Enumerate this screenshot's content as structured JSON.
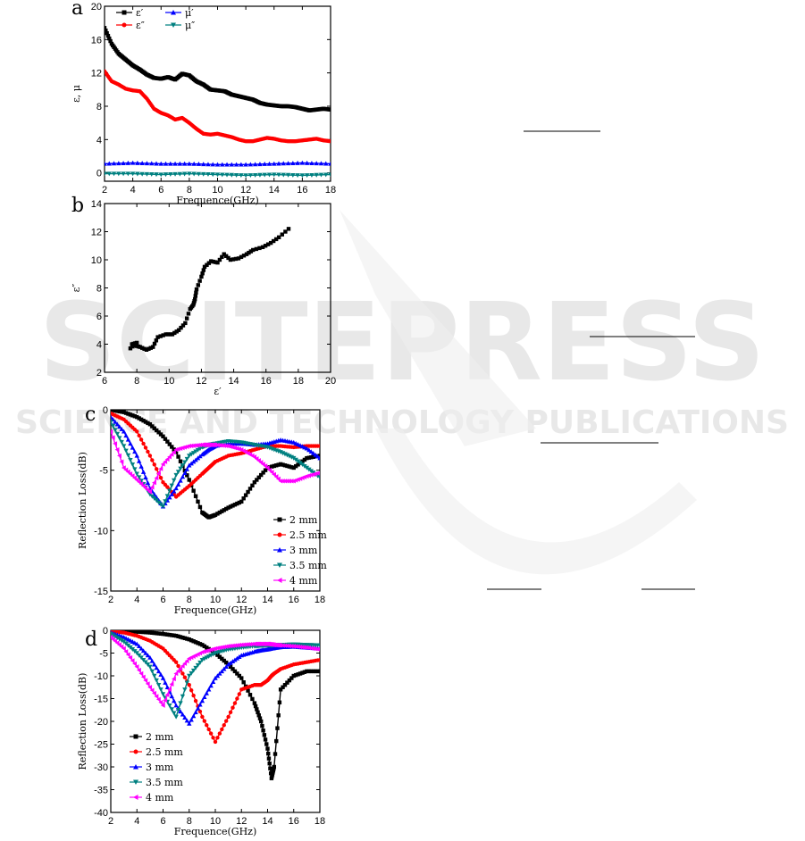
{
  "watermark": {
    "main": "SCITEPRESS",
    "sub": "SCIENCE AND TECHNOLOGY PUBLICATIONS"
  },
  "chart_data": [
    {
      "panel": "a",
      "type": "line",
      "xlabel": "Frequence(GHz)",
      "ylabel": "ε, μ",
      "xlim": [
        2,
        18
      ],
      "ylim": [
        -1,
        20
      ],
      "xticks": [
        2,
        4,
        6,
        8,
        10,
        12,
        14,
        16,
        18
      ],
      "yticks": [
        0,
        4,
        8,
        12,
        16,
        20
      ],
      "legend_position": "top-left",
      "series": [
        {
          "name": "ε′",
          "color": "#000000",
          "marker": "square",
          "x": [
            2,
            2.5,
            3,
            3.5,
            4,
            4.5,
            5,
            5.5,
            6,
            6.5,
            7,
            7.5,
            8,
            8.5,
            9,
            9.5,
            10,
            10.5,
            11,
            11.5,
            12,
            12.5,
            13,
            13.5,
            14,
            14.5,
            15,
            15.5,
            16,
            16.5,
            17,
            17.5,
            18
          ],
          "y": [
            17.4,
            15.5,
            14.3,
            13.6,
            12.9,
            12.4,
            11.8,
            11.4,
            11.3,
            11.5,
            11.2,
            11.9,
            11.7,
            11.0,
            10.6,
            10.0,
            9.9,
            9.8,
            9.4,
            9.2,
            9.0,
            8.8,
            8.4,
            8.2,
            8.1,
            8.0,
            8.0,
            7.9,
            7.7,
            7.5,
            7.6,
            7.7,
            7.6
          ]
        },
        {
          "name": "ε″",
          "color": "#ff0000",
          "marker": "circle",
          "x": [
            2,
            2.5,
            3,
            3.5,
            4,
            4.5,
            5,
            5.5,
            6,
            6.5,
            7,
            7.5,
            8,
            8.5,
            9,
            9.5,
            10,
            10.5,
            11,
            11.5,
            12,
            12.5,
            13,
            13.5,
            14,
            14.5,
            15,
            15.5,
            16,
            16.5,
            17,
            17.5,
            18
          ],
          "y": [
            12.2,
            11.0,
            10.6,
            10.1,
            9.9,
            9.8,
            8.9,
            7.7,
            7.2,
            6.9,
            6.4,
            6.6,
            6.0,
            5.3,
            4.7,
            4.6,
            4.7,
            4.5,
            4.3,
            4.0,
            3.8,
            3.8,
            4.0,
            4.2,
            4.1,
            3.9,
            3.8,
            3.8,
            3.9,
            4.0,
            4.1,
            3.9,
            3.8
          ]
        },
        {
          "name": "μ′",
          "color": "#0000ff",
          "marker": "triangle-up",
          "x": [
            2,
            4,
            6,
            8,
            10,
            12,
            14,
            16,
            18
          ],
          "y": [
            1.1,
            1.2,
            1.1,
            1.1,
            1.0,
            1.0,
            1.1,
            1.2,
            1.1
          ]
        },
        {
          "name": "μ″",
          "color": "#008080",
          "marker": "triangle-down",
          "x": [
            2,
            4,
            6,
            8,
            10,
            12,
            14,
            16,
            18
          ],
          "y": [
            -0.1,
            -0.1,
            -0.2,
            -0.1,
            -0.2,
            -0.3,
            -0.2,
            -0.3,
            -0.2
          ]
        }
      ]
    },
    {
      "panel": "b",
      "type": "scatter",
      "xlabel": "ε′",
      "ylabel": "ε″",
      "xlim": [
        6,
        20
      ],
      "ylim": [
        2,
        14
      ],
      "xticks": [
        6,
        8,
        10,
        12,
        14,
        16,
        18,
        20
      ],
      "yticks": [
        2,
        4,
        6,
        8,
        10,
        12,
        14
      ],
      "series": [
        {
          "name": "",
          "color": "#000000",
          "marker": "square",
          "x": [
            17.4,
            16.8,
            16.3,
            15.8,
            15.2,
            14.8,
            14.3,
            13.8,
            13.4,
            13.0,
            12.6,
            12.2,
            12.0,
            11.7,
            11.6,
            11.5,
            11.3,
            11.0,
            10.6,
            10.2,
            9.8,
            9.3,
            9.0,
            8.6,
            8.2,
            7.9,
            7.7,
            8.0,
            7.6
          ],
          "y": [
            12.2,
            11.6,
            11.2,
            10.9,
            10.7,
            10.4,
            10.1,
            10.0,
            10.4,
            9.8,
            9.9,
            9.5,
            8.8,
            7.9,
            7.2,
            6.8,
            6.5,
            5.5,
            5.0,
            4.7,
            4.7,
            4.5,
            3.8,
            3.6,
            3.8,
            3.9,
            4.0,
            4.1,
            3.7
          ]
        }
      ]
    },
    {
      "panel": "c",
      "type": "line",
      "xlabel": "Frequence(GHz)",
      "ylabel": "Reflection Loss(dB)",
      "xlim": [
        2,
        18
      ],
      "ylim": [
        -15,
        0
      ],
      "xticks": [
        2,
        4,
        6,
        8,
        10,
        12,
        14,
        16,
        18
      ],
      "yticks": [
        0,
        -5,
        -10,
        -15
      ],
      "ytick_labels": [
        "0",
        "-5",
        "-10",
        "-15"
      ],
      "legend_position": "bottom-right",
      "x": [
        2,
        3,
        4,
        5,
        6,
        7,
        8,
        9,
        9.5,
        10,
        11,
        12,
        13,
        14,
        15,
        16,
        17,
        18
      ],
      "series": [
        {
          "name": "2 mm",
          "color": "#000000",
          "marker": "square",
          "values": [
            0,
            -0.2,
            -0.6,
            -1.2,
            -2.2,
            -3.5,
            -5.8,
            -8.5,
            -8.9,
            -8.7,
            -8.1,
            -7.6,
            -6.0,
            -4.8,
            -4.5,
            -4.8,
            -4.0,
            -3.8
          ]
        },
        {
          "name": "2.5 mm",
          "color": "#ff0000",
          "marker": "circle",
          "values": [
            -0.3,
            -0.8,
            -1.8,
            -3.8,
            -6.0,
            -7.2,
            -6.3,
            -5.3,
            -4.8,
            -4.3,
            -3.8,
            -3.6,
            -3.3,
            -3.0,
            -3.0,
            -3.1,
            -3.0,
            -3.0
          ]
        },
        {
          "name": "3 mm",
          "color": "#0000ff",
          "marker": "triangle-up",
          "values": [
            -0.6,
            -1.8,
            -3.8,
            -6.5,
            -8.0,
            -6.5,
            -4.6,
            -3.7,
            -3.3,
            -3.0,
            -2.8,
            -2.8,
            -2.9,
            -2.8,
            -2.5,
            -2.7,
            -3.2,
            -4.0
          ]
        },
        {
          "name": "3.5 mm",
          "color": "#008080",
          "marker": "triangle-down",
          "values": [
            -1.0,
            -3.0,
            -5.3,
            -7.0,
            -8.0,
            -5.4,
            -3.8,
            -3.1,
            -2.9,
            -2.8,
            -2.6,
            -2.7,
            -2.9,
            -3.1,
            -3.5,
            -4.0,
            -4.8,
            -5.6
          ]
        },
        {
          "name": "4 mm",
          "color": "#ff00ff",
          "marker": "triangle-left",
          "values": [
            -1.8,
            -4.8,
            -5.8,
            -6.8,
            -4.5,
            -3.3,
            -3.0,
            -2.9,
            -2.9,
            -2.9,
            -3.0,
            -3.3,
            -3.9,
            -4.8,
            -5.9,
            -5.9,
            -5.5,
            -5.2
          ]
        }
      ]
    },
    {
      "panel": "d",
      "type": "line",
      "xlabel": "Frequence(GHz)",
      "ylabel": "Reflection Loss(dB)",
      "xlim": [
        2,
        18
      ],
      "ylim": [
        -40,
        0
      ],
      "xticks": [
        2,
        4,
        6,
        8,
        10,
        12,
        14,
        16,
        18
      ],
      "yticks": [
        0,
        -5,
        -10,
        -15,
        -20,
        -25,
        -30,
        -35,
        -40
      ],
      "ytick_labels": [
        "0",
        "-5",
        "-10",
        "-15",
        "-20",
        "-25",
        "-30",
        "-35",
        "-40"
      ],
      "legend_position": "bottom-left",
      "x": [
        2,
        3,
        4,
        5,
        6,
        7,
        8,
        9,
        10,
        11,
        12,
        13,
        13.5,
        14,
        14.3,
        14.5,
        15,
        16,
        17,
        18
      ],
      "series": [
        {
          "name": "2 mm",
          "color": "#000000",
          "marker": "square",
          "values": [
            0,
            -0.1,
            -0.3,
            -0.5,
            -0.8,
            -1.2,
            -2.0,
            -3.2,
            -5.0,
            -7.5,
            -10.5,
            -16,
            -20,
            -26,
            -32.5,
            -30,
            -13,
            -10,
            -9,
            -9
          ]
        },
        {
          "name": "2.5 mm",
          "color": "#ff0000",
          "marker": "circle",
          "values": [
            -0.2,
            -0.5,
            -1.2,
            -2.3,
            -4.0,
            -7.0,
            -12,
            -19,
            -24.5,
            -19,
            -13,
            -12,
            -12,
            -11,
            -10,
            -9.5,
            -8.5,
            -7.5,
            -7,
            -6.5
          ]
        },
        {
          "name": "3 mm",
          "color": "#0000ff",
          "marker": "triangle-up",
          "values": [
            -0.5,
            -1.5,
            -3.0,
            -6.0,
            -10.5,
            -16.5,
            -20.5,
            -15.5,
            -10.5,
            -7.5,
            -5.5,
            -4.7,
            -4.4,
            -4.2,
            -4.0,
            -3.9,
            -3.7,
            -3.6,
            -3.8,
            -4.0
          ]
        },
        {
          "name": "3.5 mm",
          "color": "#008080",
          "marker": "triangle-down",
          "values": [
            -0.8,
            -2.5,
            -5.0,
            -8.0,
            -14,
            -19,
            -10,
            -6.5,
            -5.0,
            -4.2,
            -3.8,
            -3.5,
            -3.4,
            -3.3,
            -3.3,
            -3.2,
            -3.2,
            -3.1,
            -3.2,
            -3.3
          ]
        },
        {
          "name": "4 mm",
          "color": "#ff00ff",
          "marker": "triangle-left",
          "values": [
            -1.5,
            -4.0,
            -8.0,
            -12.5,
            -16.5,
            -9.5,
            -6.2,
            -4.8,
            -4.0,
            -3.5,
            -3.2,
            -3.0,
            -3.0,
            -3.0,
            -3.1,
            -3.2,
            -3.3,
            -3.5,
            -3.8,
            -4.2
          ]
        }
      ]
    }
  ]
}
